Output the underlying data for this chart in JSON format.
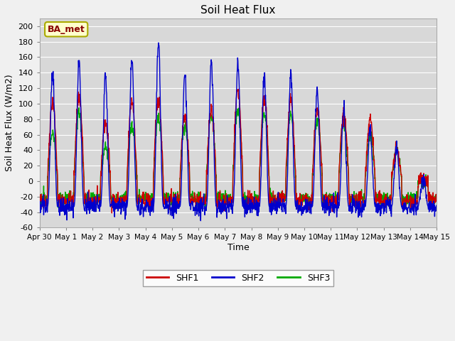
{
  "title": "Soil Heat Flux",
  "xlabel": "Time",
  "ylabel": "Soil Heat Flux (W/m2)",
  "ylim": [
    -60,
    210
  ],
  "yticks": [
    -60,
    -40,
    -20,
    0,
    20,
    40,
    60,
    80,
    100,
    120,
    140,
    160,
    180,
    200
  ],
  "colors": {
    "SHF1": "#cc0000",
    "SHF2": "#0000cc",
    "SHF3": "#00aa00"
  },
  "annotation": "BA_met",
  "annotation_facecolor": "#ffffcc",
  "annotation_edgecolor": "#aaaa00",
  "annotation_textcolor": "#880000",
  "fig_facecolor": "#f0f0f0",
  "axes_facecolor": "#d8d8d8",
  "grid_color": "#ffffff",
  "linewidth": 1.0,
  "n_days": 15,
  "pts_per_day": 96,
  "seed": 42,
  "shf1_peaks": [
    103,
    110,
    75,
    103,
    105,
    86,
    90,
    118,
    105,
    103,
    90,
    85,
    80,
    40,
    0
  ],
  "shf2_peaks": [
    140,
    155,
    135,
    160,
    180,
    138,
    155,
    152,
    138,
    138,
    120,
    93,
    65,
    40,
    0
  ],
  "shf3_peaks": [
    60,
    90,
    44,
    70,
    80,
    70,
    85,
    90,
    85,
    86,
    80,
    75,
    60,
    38,
    0
  ],
  "shf1_night": -25,
  "shf2_night": -33,
  "shf3_night": -22,
  "day_start": 0.3,
  "day_end": 0.68
}
